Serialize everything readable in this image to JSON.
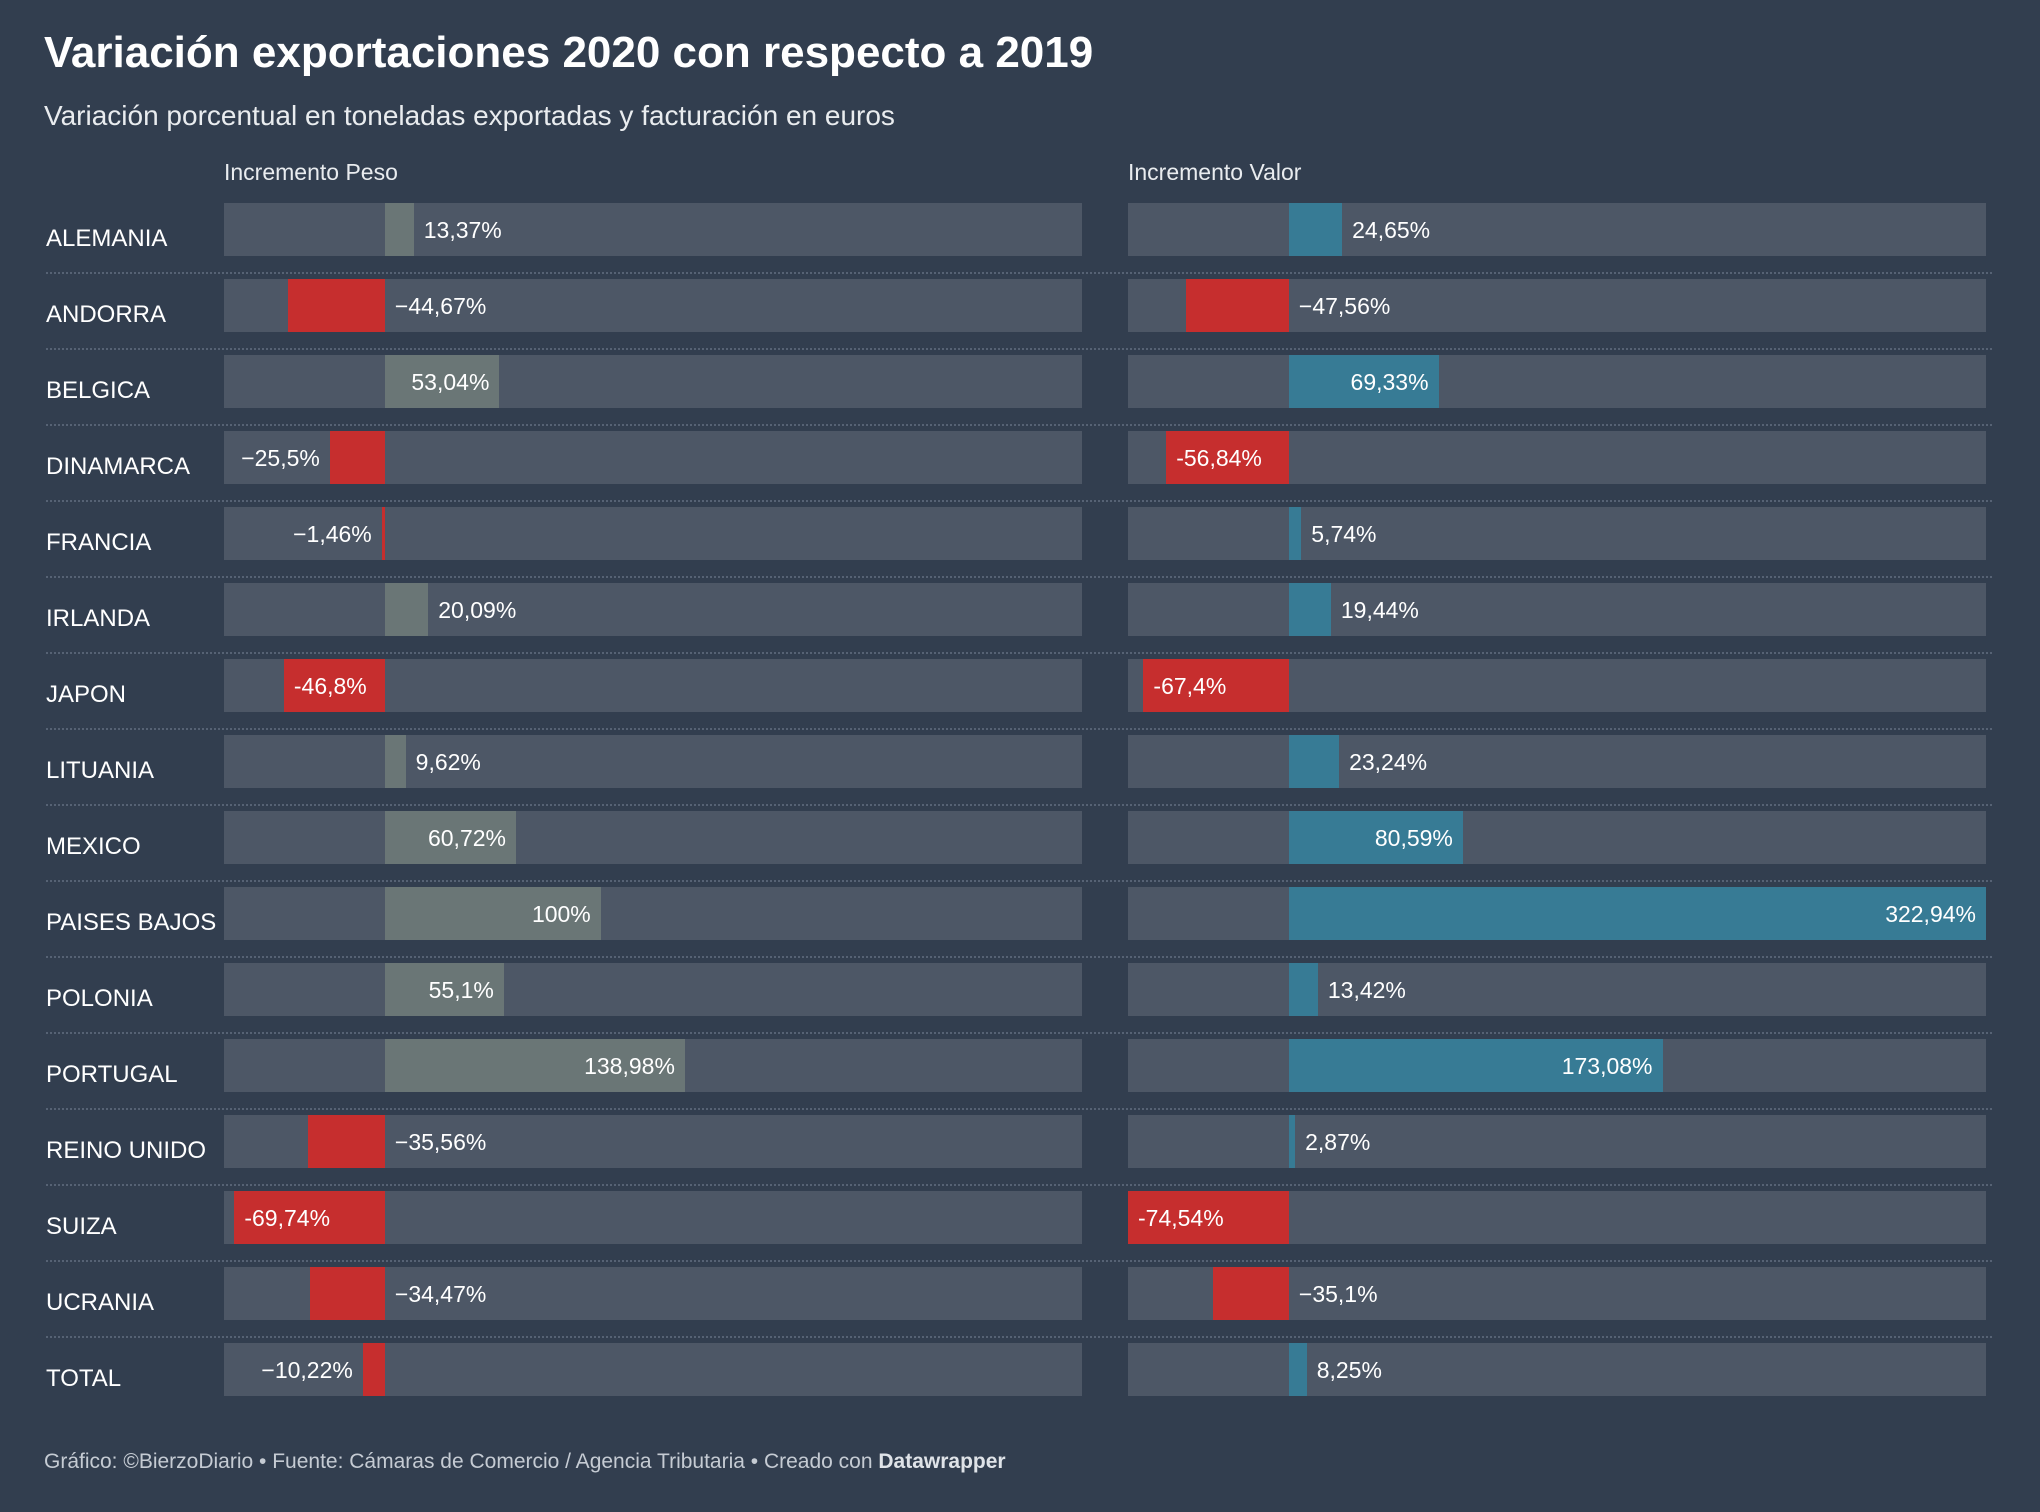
{
  "title": "Variación exportaciones 2020 con respecto a 2019",
  "subtitle": "Variación porcentual en toneladas exportadas y facturación en euros",
  "footer": {
    "text": "Gráfico: ©BierzoDiario • Fuente: Cámaras de Comercio / Agencia Tributaria • Creado con ",
    "brand": "Datawrapper"
  },
  "colors": {
    "background": "#323e4f",
    "track": "#4d5766",
    "negative": "#c62e2e",
    "peso_positive": "#6a7676",
    "valor_positive": "#377b95"
  },
  "chart_data": {
    "type": "bar",
    "orientation": "horizontal",
    "categories": [
      "ALEMANIA",
      "ANDORRA",
      "BELGICA",
      "DINAMARCA",
      "FRANCIA",
      "IRLANDA",
      "JAPON",
      "LITUANIA",
      "MEXICO",
      "PAISES BAJOS",
      "POLONIA",
      "PORTUGAL",
      "REINO UNIDO",
      "SUIZA",
      "UCRANIA",
      "TOTAL"
    ],
    "series": [
      {
        "name": "Incremento Peso",
        "values": [
          13.37,
          -44.67,
          53.04,
          -25.5,
          -1.46,
          20.09,
          -46.8,
          9.62,
          60.72,
          100,
          55.1,
          138.98,
          -35.56,
          -69.74,
          -34.47,
          -10.22
        ],
        "labels": [
          "13,37%",
          "−44,67%",
          "53,04%",
          "−25,5%",
          "−1,46%",
          "20,09%",
          "-46,8%",
          "9,62%",
          "60,72%",
          "100%",
          "55,1%",
          "138,98%",
          "−35,56%",
          "-69,74%",
          "−34,47%",
          "−10,22%"
        ],
        "domain": [
          -74.54,
          322.94
        ]
      },
      {
        "name": "Incremento Valor",
        "values": [
          24.65,
          -47.56,
          69.33,
          -56.84,
          5.74,
          19.44,
          -67.4,
          23.24,
          80.59,
          322.94,
          13.42,
          173.08,
          2.87,
          -74.54,
          -35.1,
          8.25
        ],
        "labels": [
          "24,65%",
          "−47,56%",
          "69,33%",
          "-56,84%",
          "5,74%",
          "19,44%",
          "-67,4%",
          "23,24%",
          "80,59%",
          "322,94%",
          "13,42%",
          "173,08%",
          "2,87%",
          "-74,54%",
          "−35,1%",
          "8,25%"
        ],
        "domain": [
          -74.54,
          322.94
        ]
      }
    ]
  }
}
